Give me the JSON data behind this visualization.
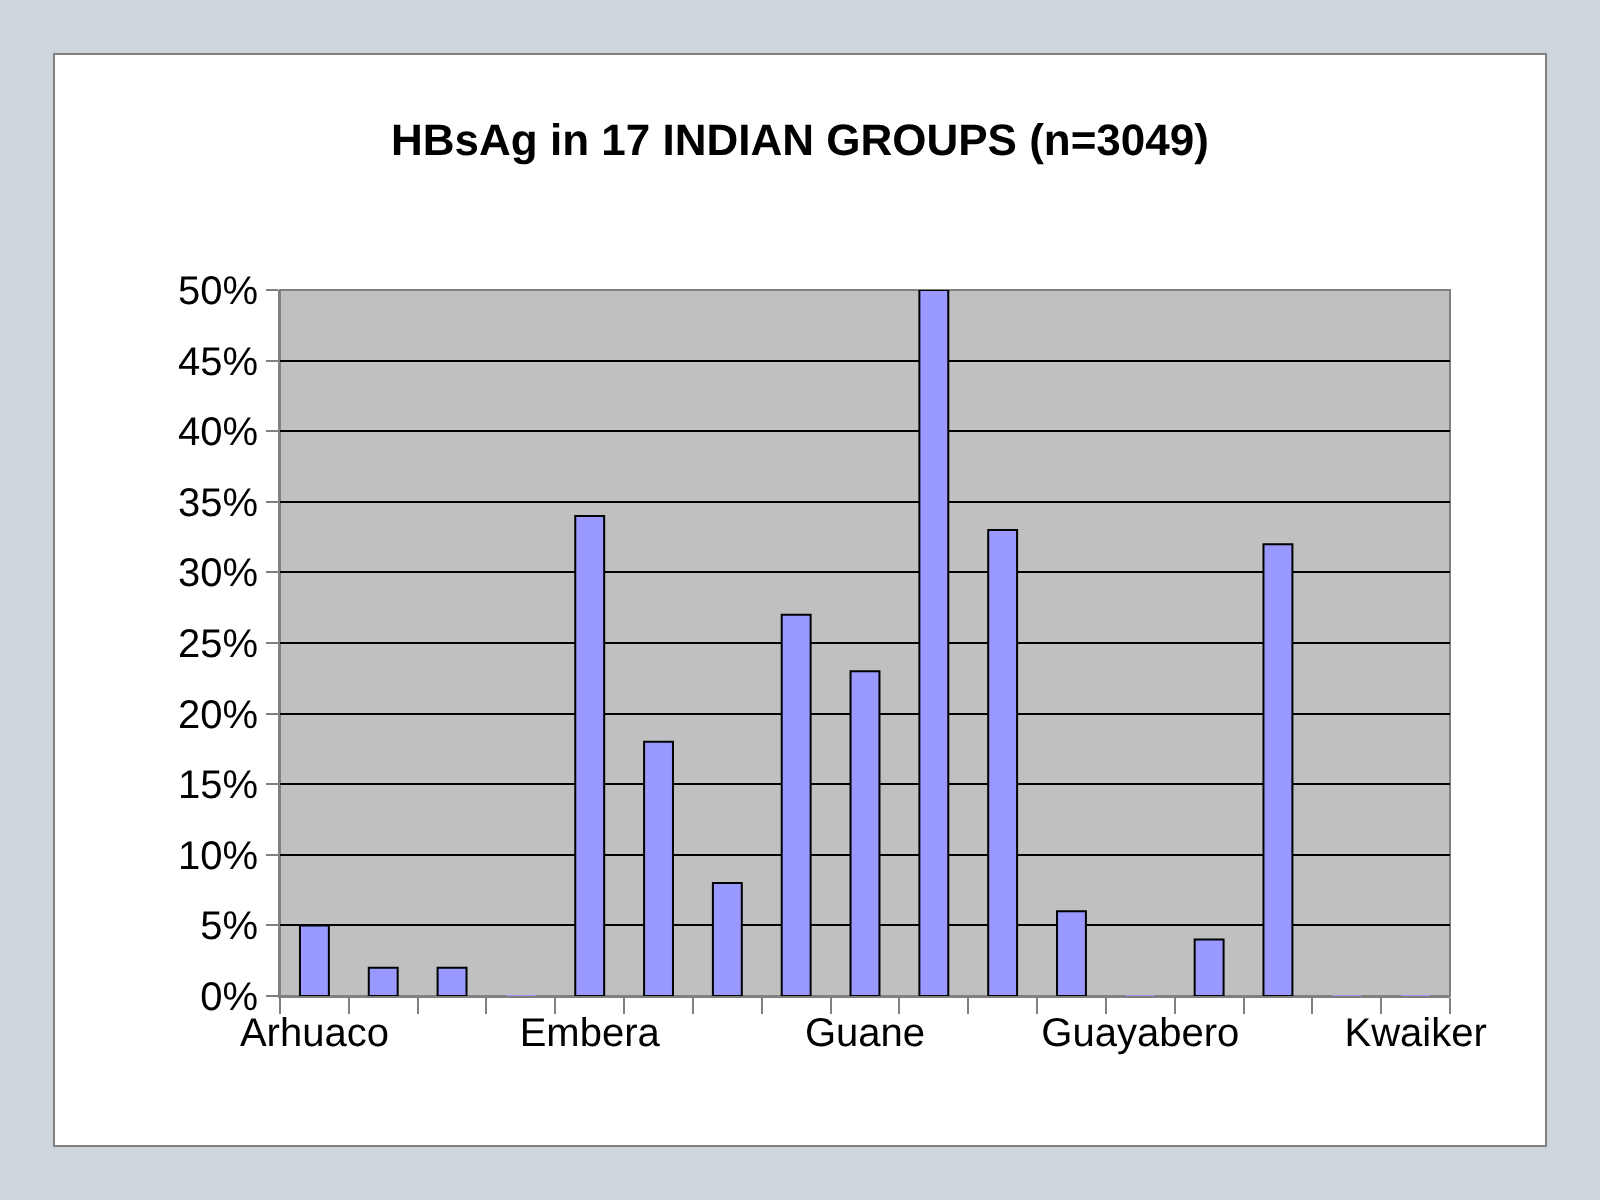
{
  "chart_data": {
    "type": "bar",
    "title": "HBsAg in 17 INDIAN GROUPS (n=3049)",
    "categories": [
      "Arhuaco",
      null,
      null,
      null,
      "Embera",
      null,
      null,
      null,
      "Guane",
      null,
      null,
      null,
      "Guayabero",
      null,
      null,
      null,
      "Kwaiker"
    ],
    "values": [
      5,
      2,
      2,
      0,
      34,
      18,
      8,
      27,
      23,
      50,
      33,
      6,
      0,
      4,
      32,
      0,
      0
    ],
    "color": "#9999ff",
    "ylim": [
      0,
      50
    ],
    "yticks": [
      {
        "value": 0,
        "label": "0%"
      },
      {
        "value": 5,
        "label": "5%"
      },
      {
        "value": 10,
        "label": "10%"
      },
      {
        "value": 15,
        "label": "15%"
      },
      {
        "value": 20,
        "label": "20%"
      },
      {
        "value": 25,
        "label": "25%"
      },
      {
        "value": 30,
        "label": "30%"
      },
      {
        "value": 35,
        "label": "35%"
      },
      {
        "value": 40,
        "label": "40%"
      },
      {
        "value": 45,
        "label": "45%"
      },
      {
        "value": 50,
        "label": "50%"
      }
    ],
    "grid": "y"
  }
}
